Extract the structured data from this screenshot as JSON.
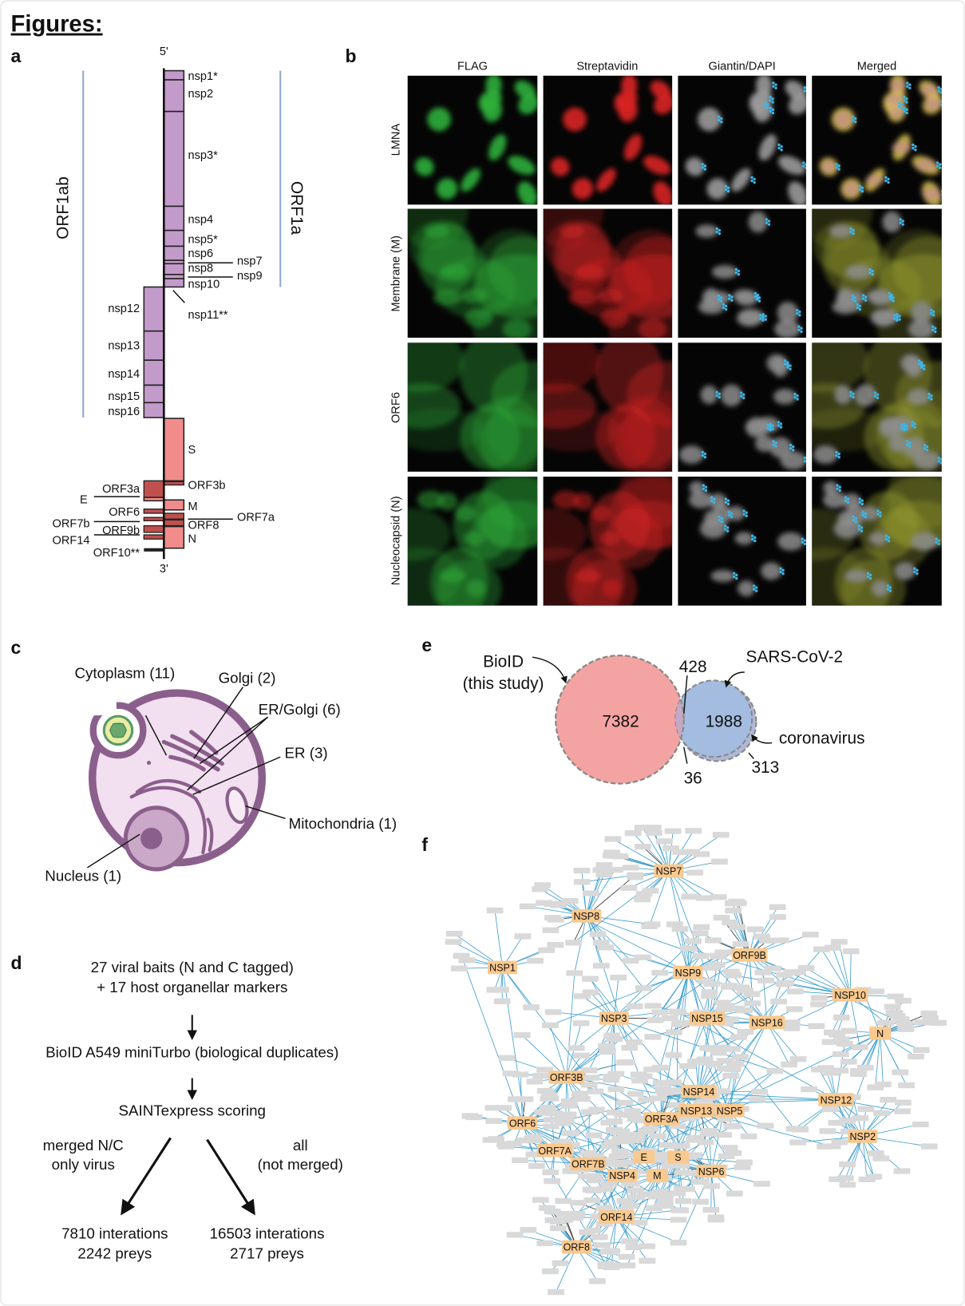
{
  "figure_title": "Figures:",
  "panel_a": {
    "label": "a",
    "five_prime": "5'",
    "three_prime": "3'",
    "orf1ab": "ORF1ab",
    "orf1a": "ORF1a",
    "genes": [
      "nsp1*",
      "nsp2",
      "nsp3*",
      "nsp4",
      "nsp5*",
      "nsp6",
      "nsp7",
      "nsp8",
      "nsp9",
      "nsp10",
      "nsp11**",
      "nsp12",
      "nsp13",
      "nsp14",
      "nsp15",
      "nsp16",
      "S",
      "ORF3b",
      "ORF3a",
      "E",
      "M",
      "ORF6",
      "ORF7a",
      "ORF8",
      "ORF7b",
      "ORF9b",
      "N",
      "ORF14",
      "ORF10**"
    ],
    "colors": {
      "nsp": "#c39bcb",
      "structural": "#f28c8c",
      "accessory": "#c0504d",
      "orf_line": "#8fa8cf"
    }
  },
  "panel_b": {
    "label": "b",
    "columns": [
      "FLAG",
      "Streptavidin",
      "Giantin/DAPI",
      "Merged"
    ],
    "rows": [
      "LMNA",
      "Membrane (M)",
      "ORF6",
      "Nucleocapsid (N)"
    ]
  },
  "panel_c": {
    "label": "c",
    "compartments": [
      "Cytoplasm (11)",
      "Golgi (2)",
      "ER/Golgi (6)",
      "ER (3)",
      "Mitochondria (1)",
      "Nucleus (1)"
    ]
  },
  "panel_d": {
    "label": "d",
    "step1_line1": "27 viral baits (N and C tagged)",
    "step1_line2": "+ 17 host organellar markers",
    "step2": "BioID A549 miniTurbo (biological duplicates)",
    "step3": "SAINTexpress scoring",
    "left_branch_line1": "merged N/C",
    "left_branch_line2": "only virus",
    "right_branch_line1": "all",
    "right_branch_line2": "(not merged)",
    "left_result_line1": "7810 interations",
    "left_result_line2": "2242 preys",
    "right_result_line1": "16503 interations",
    "right_result_line2": "2717 preys"
  },
  "panel_e": {
    "label": "e",
    "set_a_line1": "BioID",
    "set_a_line2": "(this study)",
    "set_b": "SARS-CoV-2",
    "set_c": "coronavirus",
    "only_bioid": "7382",
    "bioid_and_sars": "428",
    "only_sars": "1988",
    "bioid_sars_cov": "36",
    "coronavirus_only": "313",
    "colors": {
      "bioid": "#f4a3a3",
      "sars": "#a3bcdf"
    }
  },
  "panel_f": {
    "label": "f",
    "baits": [
      "NSP7",
      "NSP8",
      "NSP1",
      "NSP9",
      "ORF9B",
      "NSP10",
      "NSP3",
      "NSP15",
      "NSP16",
      "N",
      "ORF3B",
      "NSP14",
      "NSP12",
      "NSP13",
      "NSP5",
      "ORF3A",
      "ORF6",
      "NSP2",
      "ORF7A",
      "E",
      "S",
      "ORF7B",
      "NSP4",
      "M",
      "NSP6",
      "ORF14",
      "ORF8"
    ],
    "colors": {
      "bait": "#f9c98f",
      "prey": "#d9d9d9",
      "edge": "#3fa0d0",
      "edge_alt": "#333333"
    }
  }
}
